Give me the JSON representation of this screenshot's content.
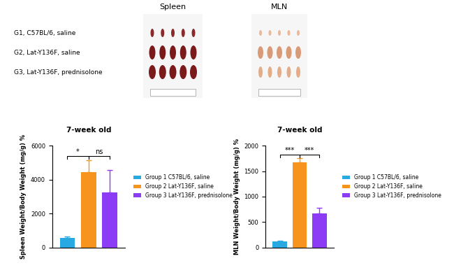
{
  "photo_panel": {
    "column_titles": [
      "Spleen",
      "MLN"
    ],
    "row_labels": [
      "G1, C57BL/6, saline",
      "G2, Lat-Y136F, saline",
      "G3, Lat-Y136F, prednisolone"
    ]
  },
  "chart_data": [
    {
      "type": "bar",
      "title": "7-week old",
      "ylabel": "Spleen Weight/Body Weight (mg/g) %",
      "categories": [
        null
      ],
      "series": [
        {
          "name": "Group 1 C57BL/6, saline",
          "color": "#29a9e1",
          "values": [
            580
          ],
          "errors": [
            60
          ]
        },
        {
          "name": "Group 2 Lat-Y136F, saline",
          "color": "#f7941d",
          "values": [
            4450
          ],
          "errors": [
            700
          ]
        },
        {
          "name": "Group 3 Lat-Y136F, prednisolone",
          "color": "#8c3cf5",
          "values": [
            3250
          ],
          "errors": [
            1300
          ]
        }
      ],
      "ylim": [
        0,
        6000
      ],
      "yticks": [
        0,
        2000,
        4000,
        6000
      ],
      "tick_labels": "y",
      "legend": "right",
      "annotations": [
        {
          "label": "*",
          "between": [
            "Group 1 C57BL/6, saline",
            "Group 2 Lat-Y136F, saline"
          ]
        },
        {
          "label": "ns",
          "between": [
            "Group 2 Lat-Y136F, saline",
            "Group 3 Lat-Y136F, prednisolone"
          ]
        }
      ]
    },
    {
      "type": "bar",
      "title": "7-week old",
      "ylabel": "MLN Weight/Body Weight (mg/g) %",
      "categories": [
        null
      ],
      "series": [
        {
          "name": "Group 1 C57BL/6, saline",
          "color": "#29a9e1",
          "values": [
            120
          ],
          "errors": [
            12
          ]
        },
        {
          "name": "Group 2 Lat-Y136F, saline",
          "color": "#f7941d",
          "values": [
            1680
          ],
          "errors": [
            70
          ]
        },
        {
          "name": "Group 3 Lat-Y136F, prednisolone",
          "color": "#8c3cf5",
          "values": [
            670
          ],
          "errors": [
            110
          ]
        }
      ],
      "ylim": [
        0,
        2000
      ],
      "yticks": [
        0,
        500,
        1000,
        1500,
        2000
      ],
      "tick_labels": "y",
      "legend": "right",
      "annotations": [
        {
          "label": "***",
          "between": [
            "Group 1 C57BL/6, saline",
            "Group 2 Lat-Y136F, saline"
          ]
        },
        {
          "label": "***",
          "between": [
            "Group 2 Lat-Y136F, saline",
            "Group 3 Lat-Y136F, prednisolone"
          ]
        }
      ]
    }
  ]
}
